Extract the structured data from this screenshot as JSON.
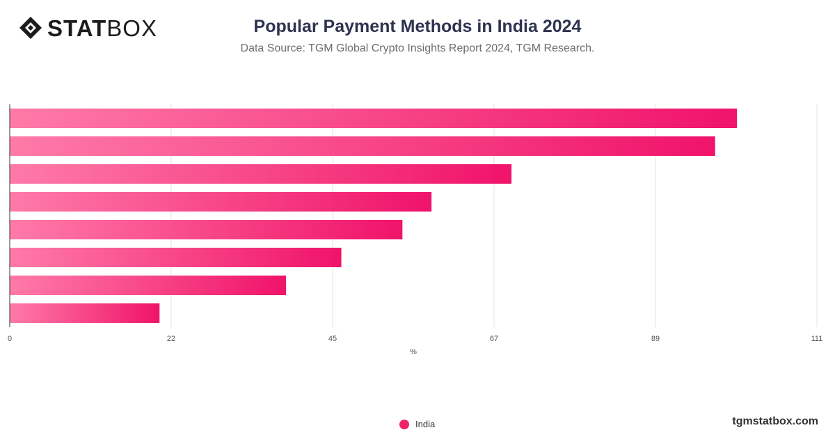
{
  "brand": {
    "logo_strong": "STAT",
    "logo_light": "BOX",
    "site": "tgmstatbox.com"
  },
  "colors": {
    "bar_start": "#ff7aa8",
    "bar_end": "#f0136a",
    "title": "#2f3350",
    "grid": "#e3e3e3"
  },
  "chart_data": {
    "type": "bar",
    "orientation": "horizontal",
    "title": "Popular Payment Methods in India 2024",
    "subtitle": "Data Source: TGM Global Crypto Insights Report 2024, TGM Research.",
    "xlabel": "%",
    "ylabel": "",
    "xlim": [
      0,
      111
    ],
    "x_ticks": [
      "0",
      "22",
      "45",
      "67",
      "89",
      "111"
    ],
    "x_tick_values": [
      0,
      22.2,
      44.4,
      66.6,
      88.8,
      111
    ],
    "grid": true,
    "legend_position": "bottom-center",
    "series": [
      {
        "name": "India",
        "values": [
          100,
          97,
          69,
          58,
          54,
          45.6,
          38,
          20.6
        ]
      }
    ]
  }
}
